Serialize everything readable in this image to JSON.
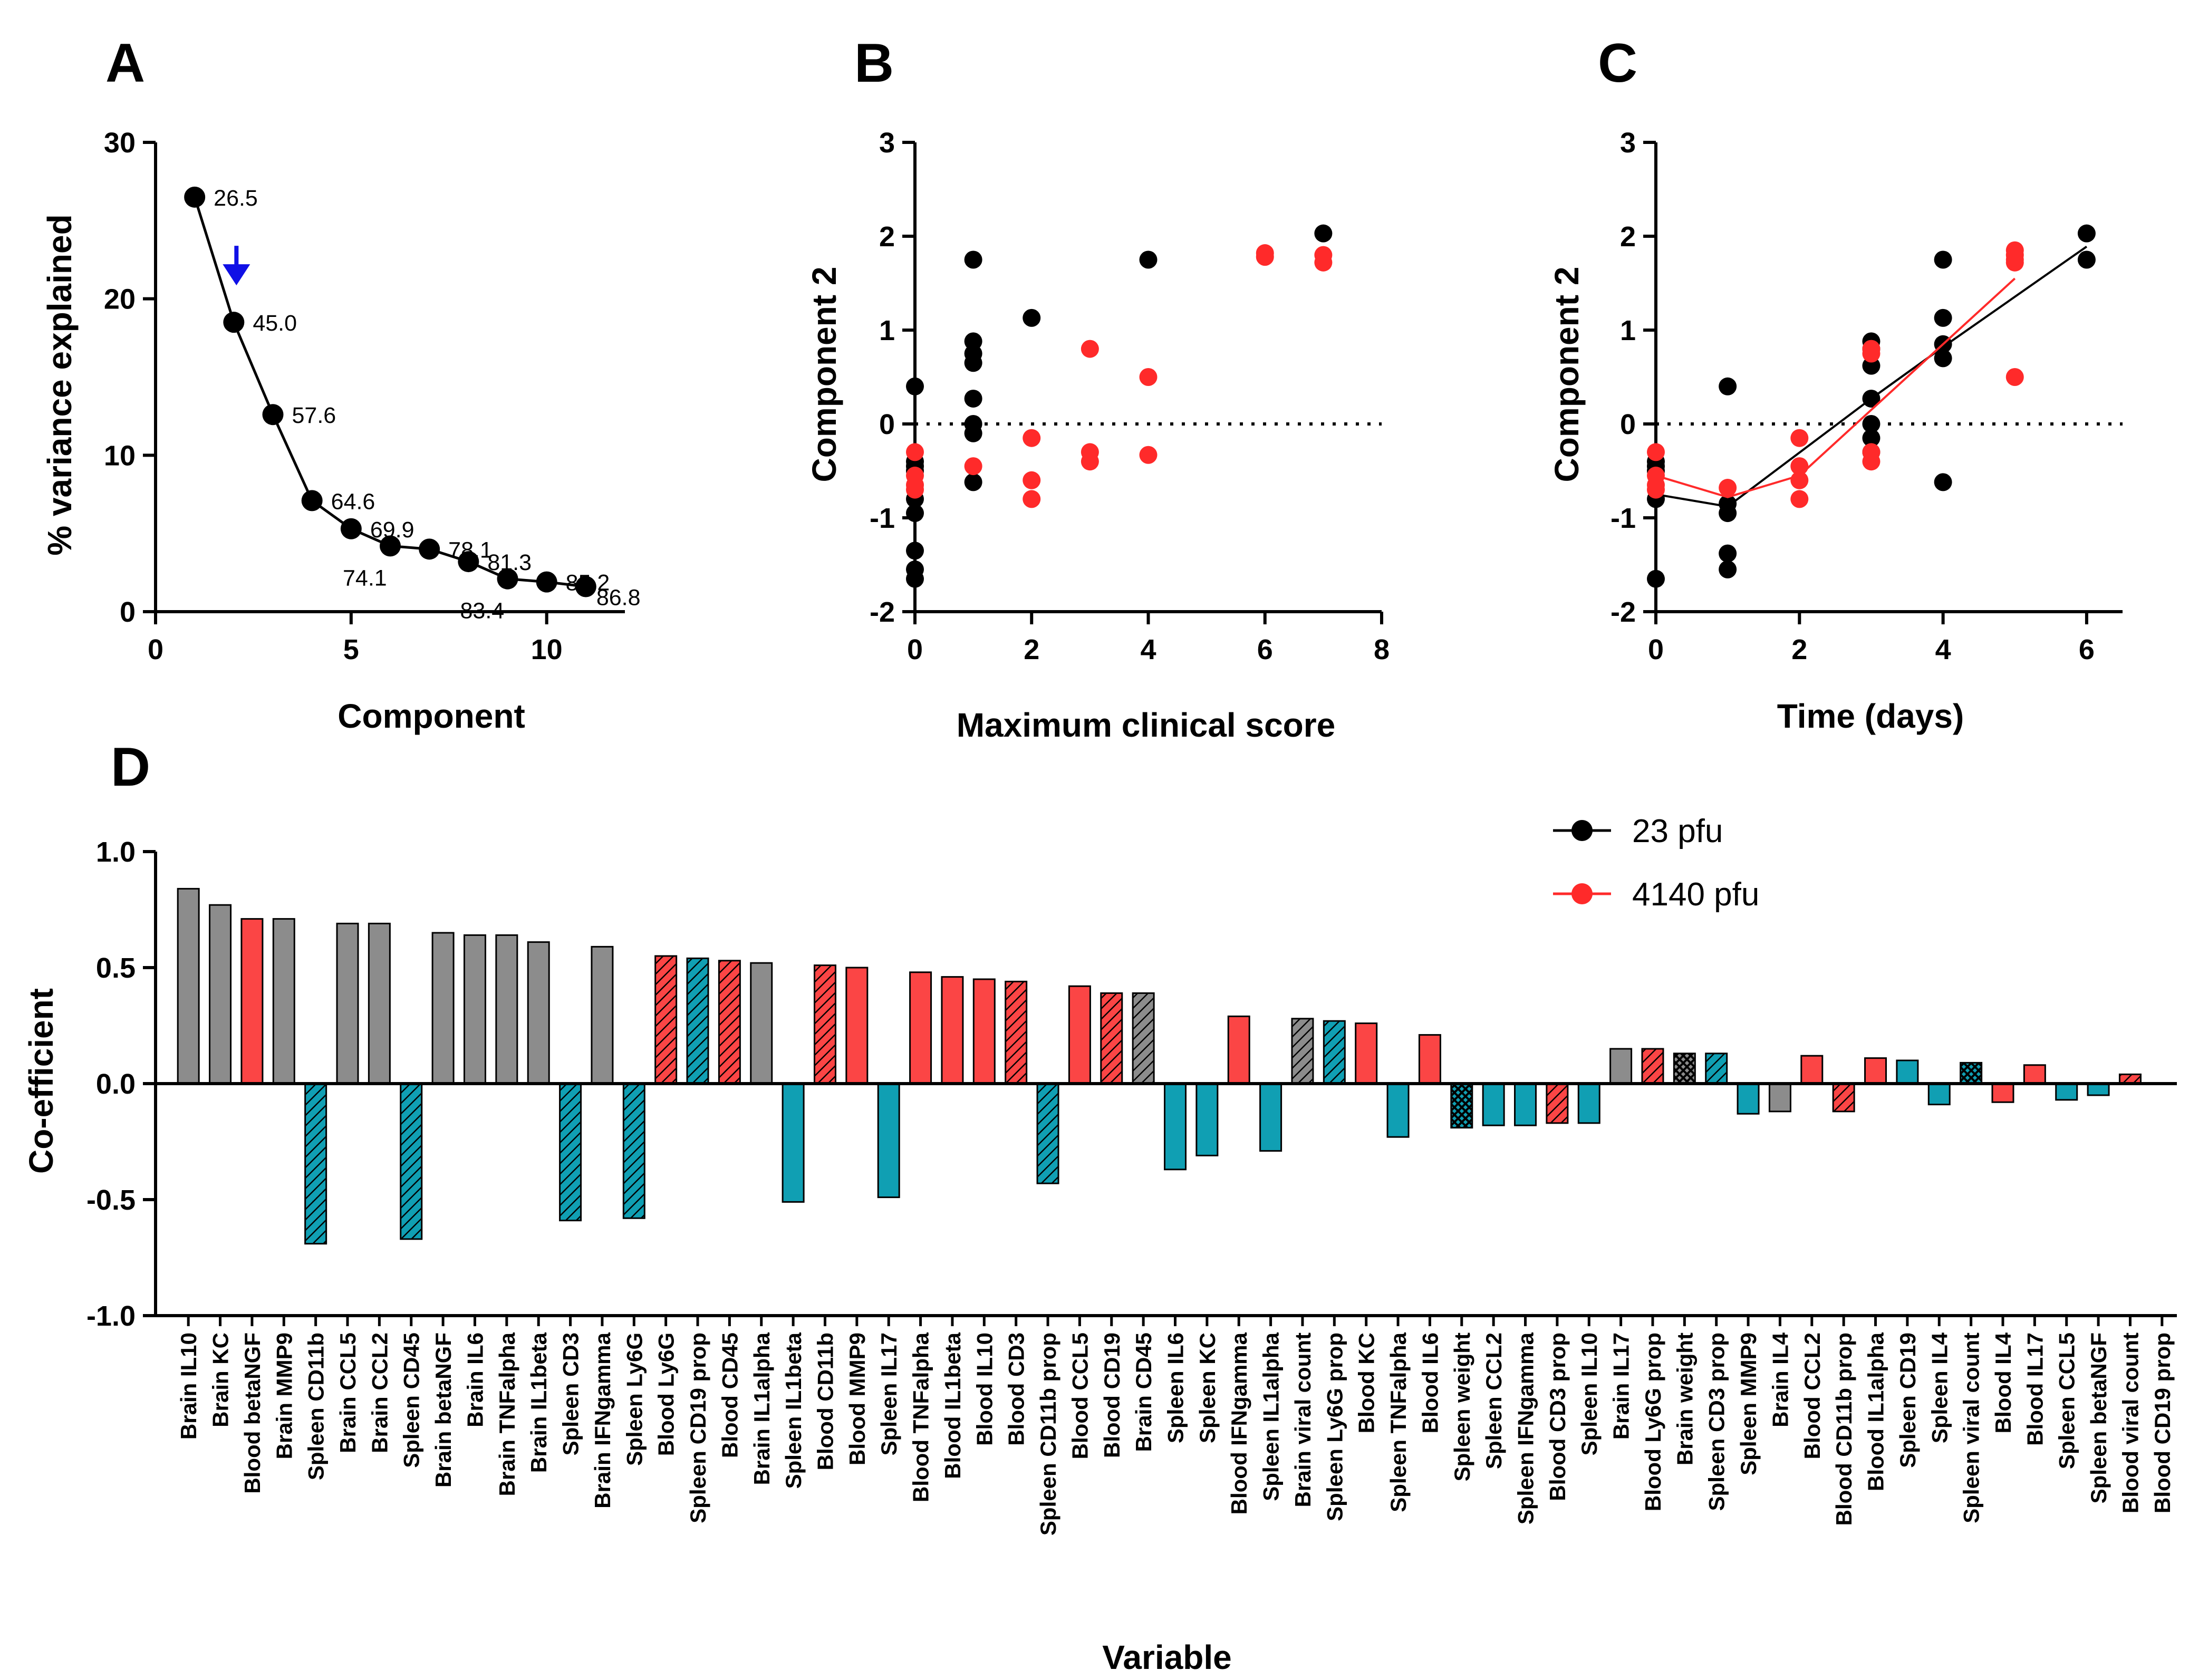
{
  "colors": {
    "black": "#000000",
    "red": "#ff2a2a",
    "bar_red": "#fb4545",
    "bar_gray": "#8c8c8c",
    "bar_teal": "#109fb3",
    "arrow_blue": "#1010e6"
  },
  "panels": {
    "A": {
      "letter": "A",
      "chart_data": {
        "type": "line",
        "xlabel": "Component",
        "ylabel": "% variance explained",
        "xlim": [
          0,
          12
        ],
        "ylim": [
          0,
          30
        ],
        "x_ticks": [
          "0",
          "5",
          "10"
        ],
        "y_ticks": [
          "0",
          "10",
          "20",
          "30"
        ],
        "points": [
          {
            "x": 1,
            "y": 26.5,
            "label": "26.5"
          },
          {
            "x": 2,
            "y": 18.5,
            "label": "45.0"
          },
          {
            "x": 3,
            "y": 12.6,
            "label": "57.6"
          },
          {
            "x": 4,
            "y": 7.1,
            "label": "64.6"
          },
          {
            "x": 5,
            "y": 5.3,
            "label": "69.9"
          },
          {
            "x": 6,
            "y": 4.2,
            "label": "74.1"
          },
          {
            "x": 7,
            "y": 4.0,
            "label": "78.1"
          },
          {
            "x": 8,
            "y": 3.2,
            "label": "81.3"
          },
          {
            "x": 9,
            "y": 2.1,
            "label": "83.4"
          },
          {
            "x": 10,
            "y": 1.9,
            "label": "85.2"
          },
          {
            "x": 11,
            "y": 1.6,
            "label": "86.8"
          }
        ],
        "arrow_at_component": 2
      }
    },
    "B": {
      "letter": "B",
      "chart_data": {
        "type": "scatter",
        "xlabel": "Maximum clinical score",
        "ylabel": "Component 2",
        "xlim": [
          0,
          8
        ],
        "ylim": [
          -2,
          3
        ],
        "x_ticks": [
          "0",
          "2",
          "4",
          "6",
          "8"
        ],
        "y_ticks": [
          "-2",
          "-1",
          "0",
          "1",
          "2",
          "3"
        ],
        "reference_line_y": 0,
        "series": [
          {
            "name": "23 pfu",
            "color": "#000000",
            "points": [
              [
                0,
                0.4
              ],
              [
                0,
                -0.4
              ],
              [
                0,
                -0.45
              ],
              [
                0,
                -0.5
              ],
              [
                0,
                -0.8
              ],
              [
                0,
                -0.95
              ],
              [
                0,
                -1.35
              ],
              [
                0,
                -1.55
              ],
              [
                0,
                -1.65
              ],
              [
                1,
                1.75
              ],
              [
                1,
                0.88
              ],
              [
                1,
                0.75
              ],
              [
                1,
                0.65
              ],
              [
                1,
                0.27
              ],
              [
                1,
                0.0
              ],
              [
                1,
                -0.1
              ],
              [
                1,
                -0.62
              ],
              [
                2,
                1.13
              ],
              [
                4,
                1.75
              ],
              [
                7,
                2.03
              ]
            ]
          },
          {
            "name": "4140 pfu",
            "color": "#ff2a2a",
            "points": [
              [
                0,
                -0.3
              ],
              [
                0,
                -0.55
              ],
              [
                0,
                -0.65
              ],
              [
                0,
                -0.7
              ],
              [
                1,
                -0.45
              ],
              [
                2,
                -0.15
              ],
              [
                2,
                -0.6
              ],
              [
                2,
                -0.8
              ],
              [
                3,
                0.8
              ],
              [
                3,
                -0.3
              ],
              [
                3,
                -0.4
              ],
              [
                4,
                0.5
              ],
              [
                4,
                -0.33
              ],
              [
                6,
                1.82
              ],
              [
                6,
                1.78
              ],
              [
                7,
                1.8
              ],
              [
                7,
                1.72
              ]
            ]
          }
        ]
      }
    },
    "C": {
      "letter": "C",
      "chart_data": {
        "type": "scatter",
        "xlabel": "Time (days)",
        "ylabel": "Component 2",
        "xlim": [
          0,
          6.5
        ],
        "ylim": [
          -2,
          3
        ],
        "x_ticks": [
          "0",
          "2",
          "4",
          "6"
        ],
        "y_ticks": [
          "-2",
          "-1",
          "0",
          "1",
          "2",
          "3"
        ],
        "reference_line_y": 0,
        "series": [
          {
            "name": "23 pfu",
            "color": "#000000",
            "points": [
              [
                0,
                -0.4
              ],
              [
                0,
                -0.45
              ],
              [
                0,
                -0.5
              ],
              [
                0,
                -0.8
              ],
              [
                0,
                -1.65
              ],
              [
                1,
                0.4
              ],
              [
                1,
                -0.85
              ],
              [
                1,
                -0.95
              ],
              [
                1,
                -1.38
              ],
              [
                1,
                -1.55
              ],
              [
                3,
                0.88
              ],
              [
                3,
                0.8
              ],
              [
                3,
                0.62
              ],
              [
                3,
                0.27
              ],
              [
                3,
                0.0
              ],
              [
                3,
                -0.15
              ],
              [
                3,
                -0.3
              ],
              [
                4,
                1.75
              ],
              [
                4,
                1.13
              ],
              [
                4,
                0.85
              ],
              [
                4,
                0.7
              ],
              [
                4,
                -0.62
              ],
              [
                6,
                2.03
              ],
              [
                6,
                1.75
              ]
            ],
            "mean_line": [
              [
                0,
                -0.75
              ],
              [
                1,
                -0.88
              ],
              [
                3,
                0.27
              ],
              [
                4,
                0.82
              ],
              [
                6,
                1.89
              ]
            ]
          },
          {
            "name": "4140 pfu",
            "color": "#ff2a2a",
            "points": [
              [
                0,
                -0.3
              ],
              [
                0,
                -0.55
              ],
              [
                0,
                -0.65
              ],
              [
                0,
                -0.7
              ],
              [
                1,
                -0.68
              ],
              [
                2,
                -0.15
              ],
              [
                2,
                -0.45
              ],
              [
                2,
                -0.6
              ],
              [
                2,
                -0.8
              ],
              [
                3,
                0.8
              ],
              [
                3,
                0.75
              ],
              [
                3,
                -0.3
              ],
              [
                3,
                -0.4
              ],
              [
                5,
                1.85
              ],
              [
                5,
                1.8
              ],
              [
                5,
                1.75
              ],
              [
                5,
                1.72
              ],
              [
                5,
                0.5
              ]
            ],
            "mean_line": [
              [
                0,
                -0.55
              ],
              [
                1,
                -0.78
              ],
              [
                2,
                -0.55
              ],
              [
                3,
                0.15
              ],
              [
                5,
                1.55
              ]
            ]
          }
        ],
        "legend": [
          {
            "label": "23 pfu",
            "color": "#000000"
          },
          {
            "label": "4140 pfu",
            "color": "#ff2a2a"
          }
        ]
      }
    },
    "D": {
      "letter": "D",
      "chart_data": {
        "type": "bar",
        "xlabel": "Variable",
        "ylabel": "Co-efficient",
        "ylim": [
          -1.0,
          1.0
        ],
        "y_ticks": [
          "-1.0",
          "-0.5",
          "0.0",
          "0.5",
          "1.0"
        ],
        "bars": [
          {
            "label": "Brain IL10",
            "value": 0.84,
            "color": "gray",
            "hatch": false
          },
          {
            "label": "Brain KC",
            "value": 0.77,
            "color": "gray",
            "hatch": false
          },
          {
            "label": "Blood betaNGF",
            "value": 0.71,
            "color": "red",
            "hatch": false
          },
          {
            "label": "Brain MMP9",
            "value": 0.71,
            "color": "gray",
            "hatch": false
          },
          {
            "label": "Spleen CD11b",
            "value": -0.69,
            "color": "teal",
            "hatch": true
          },
          {
            "label": "Brain CCL5",
            "value": 0.69,
            "color": "gray",
            "hatch": false
          },
          {
            "label": "Brain CCL2",
            "value": 0.69,
            "color": "gray",
            "hatch": false
          },
          {
            "label": "Spleen CD45",
            "value": -0.67,
            "color": "teal",
            "hatch": true
          },
          {
            "label": "Brain betaNGF",
            "value": 0.65,
            "color": "gray",
            "hatch": false
          },
          {
            "label": "Brain IL6",
            "value": 0.64,
            "color": "gray",
            "hatch": false
          },
          {
            "label": "Brain TNFalpha",
            "value": 0.64,
            "color": "gray",
            "hatch": false
          },
          {
            "label": "Brain IL1beta",
            "value": 0.61,
            "color": "gray",
            "hatch": false
          },
          {
            "label": "Spleen CD3",
            "value": -0.59,
            "color": "teal",
            "hatch": true
          },
          {
            "label": "Brain IFNgamma",
            "value": 0.59,
            "color": "gray",
            "hatch": false
          },
          {
            "label": "Spleen Ly6G",
            "value": -0.58,
            "color": "teal",
            "hatch": true
          },
          {
            "label": "Blood Ly6G",
            "value": 0.55,
            "color": "red",
            "hatch": true
          },
          {
            "label": "Spleen CD19 prop",
            "value": 0.54,
            "color": "teal",
            "hatch": true
          },
          {
            "label": "Blood CD45",
            "value": 0.53,
            "color": "red",
            "hatch": true
          },
          {
            "label": "Brain IL1alpha",
            "value": 0.52,
            "color": "gray",
            "hatch": false
          },
          {
            "label": "Spleen IL1beta",
            "value": -0.51,
            "color": "teal",
            "hatch": false
          },
          {
            "label": "Blood CD11b",
            "value": 0.51,
            "color": "red",
            "hatch": true
          },
          {
            "label": "Blood MMP9",
            "value": 0.5,
            "color": "red",
            "hatch": false
          },
          {
            "label": "Spleen IL17",
            "value": -0.49,
            "color": "teal",
            "hatch": false
          },
          {
            "label": "Blood TNFalpha",
            "value": 0.48,
            "color": "red",
            "hatch": false
          },
          {
            "label": "Blood IL1beta",
            "value": 0.46,
            "color": "red",
            "hatch": false
          },
          {
            "label": "Blood IL10",
            "value": 0.45,
            "color": "red",
            "hatch": false
          },
          {
            "label": "Blood CD3",
            "value": 0.44,
            "color": "red",
            "hatch": true
          },
          {
            "label": "Spleen CD11b prop",
            "value": -0.43,
            "color": "teal",
            "hatch": true
          },
          {
            "label": "Blood CCL5",
            "value": 0.42,
            "color": "red",
            "hatch": false
          },
          {
            "label": "Blood CD19",
            "value": 0.39,
            "color": "red",
            "hatch": true
          },
          {
            "label": "Brain CD45",
            "value": 0.39,
            "color": "gray",
            "hatch": true
          },
          {
            "label": "Spleen IL6",
            "value": -0.37,
            "color": "teal",
            "hatch": false
          },
          {
            "label": "Spleen KC",
            "value": -0.31,
            "color": "teal",
            "hatch": false
          },
          {
            "label": "Blood IFNgamma",
            "value": 0.29,
            "color": "red",
            "hatch": false
          },
          {
            "label": "Spleen IL1alpha",
            "value": -0.29,
            "color": "teal",
            "hatch": false
          },
          {
            "label": "Brain viral count",
            "value": 0.28,
            "color": "gray",
            "hatch": true
          },
          {
            "label": "Spleen Ly6G prop",
            "value": 0.27,
            "color": "teal",
            "hatch": true
          },
          {
            "label": "Blood KC",
            "value": 0.26,
            "color": "red",
            "hatch": false
          },
          {
            "label": "Spleen TNFalpha",
            "value": -0.23,
            "color": "teal",
            "hatch": false
          },
          {
            "label": "Blood IL6",
            "value": 0.21,
            "color": "red",
            "hatch": false
          },
          {
            "label": "Spleen weight",
            "value": -0.19,
            "color": "teal",
            "hatch": "cross"
          },
          {
            "label": "Spleen CCL2",
            "value": -0.18,
            "color": "teal",
            "hatch": false
          },
          {
            "label": "Spleen IFNgamma",
            "value": -0.18,
            "color": "teal",
            "hatch": false
          },
          {
            "label": "Blood CD3 prop",
            "value": -0.17,
            "color": "red",
            "hatch": true
          },
          {
            "label": "Spleen IL10",
            "value": -0.17,
            "color": "teal",
            "hatch": false
          },
          {
            "label": "Brain IL17",
            "value": 0.15,
            "color": "gray",
            "hatch": false
          },
          {
            "label": "Blood Ly6G prop",
            "value": 0.15,
            "color": "red",
            "hatch": true
          },
          {
            "label": "Brain weight",
            "value": 0.13,
            "color": "gray",
            "hatch": "cross"
          },
          {
            "label": "Spleen CD3 prop",
            "value": 0.13,
            "color": "teal",
            "hatch": true
          },
          {
            "label": "Spleen MMP9",
            "value": -0.13,
            "color": "teal",
            "hatch": false
          },
          {
            "label": "Brain IL4",
            "value": -0.12,
            "color": "gray",
            "hatch": false
          },
          {
            "label": "Blood CCL2",
            "value": 0.12,
            "color": "red",
            "hatch": false
          },
          {
            "label": "Blood CD11b prop",
            "value": -0.12,
            "color": "red",
            "hatch": true
          },
          {
            "label": "Blood IL1alpha",
            "value": 0.11,
            "color": "red",
            "hatch": false
          },
          {
            "label": "Spleen CD19",
            "value": 0.1,
            "color": "teal",
            "hatch": false
          },
          {
            "label": "Spleen IL4",
            "value": -0.09,
            "color": "teal",
            "hatch": false
          },
          {
            "label": "Spleen viral count",
            "value": 0.09,
            "color": "teal",
            "hatch": "cross"
          },
          {
            "label": "Blood IL4",
            "value": -0.08,
            "color": "red",
            "hatch": false
          },
          {
            "label": "Blood IL17",
            "value": 0.08,
            "color": "red",
            "hatch": false
          },
          {
            "label": "Spleen CCL5",
            "value": -0.07,
            "color": "teal",
            "hatch": false
          },
          {
            "label": "Spleen betaNGF",
            "value": -0.05,
            "color": "teal",
            "hatch": false
          },
          {
            "label": "Blood viral count",
            "value": 0.04,
            "color": "red",
            "hatch": true
          },
          {
            "label": "Blood CD19 prop",
            "value": 0.0,
            "color": "red",
            "hatch": false
          }
        ]
      }
    }
  }
}
